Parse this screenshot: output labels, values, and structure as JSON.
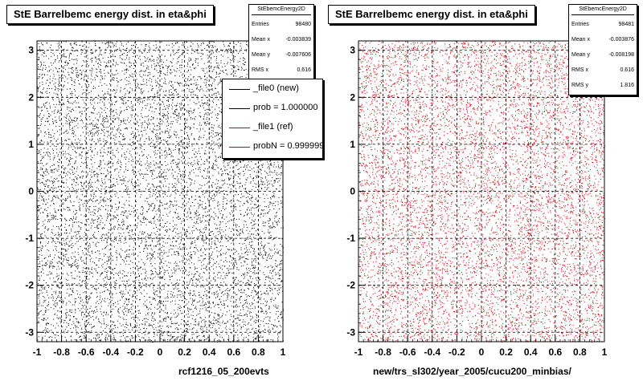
{
  "colors": {
    "pad_left": "#000000",
    "pad_right": "#cc0000",
    "legend_new": "#000000",
    "legend_ref": "#cc0000"
  },
  "chart_data": [
    {
      "type": "scatter",
      "title": "StE Barrelbemc energy dist. in eta&phi",
      "xlabel": "rcf1216_05_200evts",
      "ylabel": "",
      "xlim": [
        -1,
        1
      ],
      "ylim": [
        -3.2,
        3.2
      ],
      "xticks": [
        "-1",
        "-0.8",
        "-0.6",
        "-0.4",
        "-0.2",
        "0",
        "0.2",
        "0.4",
        "0.6",
        "0.8",
        "1"
      ],
      "yticks": [
        "-3",
        "-2",
        "-1",
        "0",
        "1",
        "2",
        "3"
      ],
      "grid": true,
      "distribution": "uniform",
      "series_color": "#000000",
      "stats": {
        "name": "StEbemcEnergy2D",
        "rows": [
          {
            "label": "Entries",
            "value": "98480"
          },
          {
            "label": "Mean x",
            "value": "-0.003839"
          },
          {
            "label": "Mean y",
            "value": "-0.007606"
          },
          {
            "label": "RMS x",
            "value": "0.616"
          }
        ]
      },
      "legend": {
        "placement": "top-right",
        "entries": [
          "_file0 (new)",
          "prob = 1.000000",
          "_file1 (ref)",
          "probN = 0.999999"
        ]
      }
    },
    {
      "type": "scatter",
      "title": "StE Barrelbemc energy dist. in eta&phi",
      "xlabel": "new/trs_sl302/year_2005/cucu200_minbias/",
      "ylabel": "",
      "xlim": [
        -1,
        1
      ],
      "ylim": [
        -3.2,
        3.2
      ],
      "xticks": [
        "-1",
        "-0.8",
        "-0.6",
        "-0.4",
        "-0.2",
        "0",
        "0.2",
        "0.4",
        "0.6",
        "0.8",
        "1"
      ],
      "yticks": [
        "-3",
        "-2",
        "-1",
        "0",
        "1",
        "2",
        "3"
      ],
      "grid": true,
      "distribution": "uniform",
      "series_color": "#cc0000",
      "stats": {
        "name": "StEbemcEnergy2D",
        "rows": [
          {
            "label": "Entries",
            "value": "98481"
          },
          {
            "label": "Mean x",
            "value": "-0.003876"
          },
          {
            "label": "Mean y",
            "value": "-0.008198"
          },
          {
            "label": "RMS x",
            "value": "0.616"
          },
          {
            "label": "RMS y",
            "value": "1.816"
          }
        ]
      }
    }
  ]
}
